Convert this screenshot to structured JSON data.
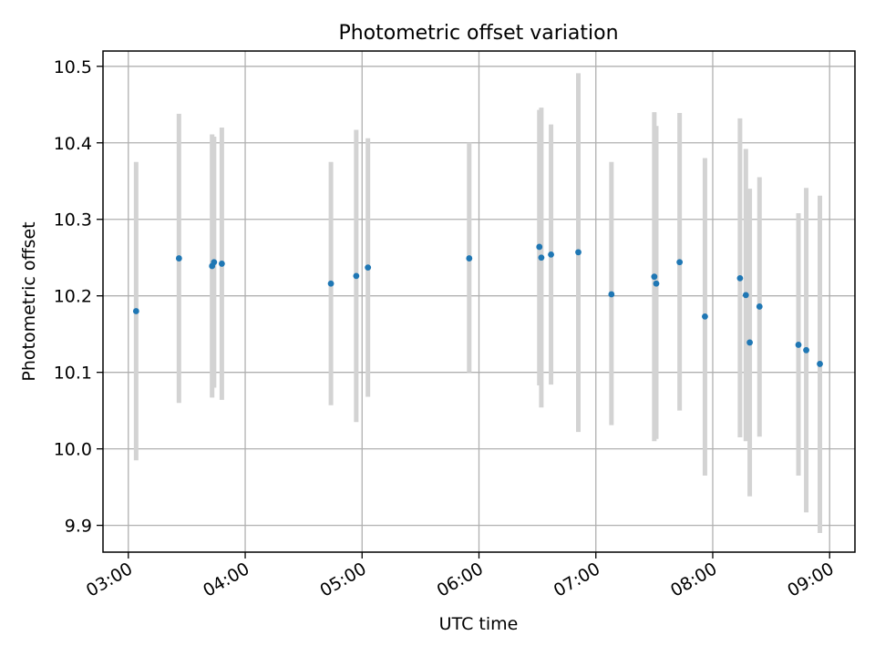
{
  "chart_data": {
    "type": "scatter",
    "title": "Photometric offset variation",
    "xlabel": "UTC time",
    "ylabel": "Photometric offset",
    "xlim": [
      "02:47",
      "09:13"
    ],
    "ylim": [
      9.865,
      10.52
    ],
    "x_ticks": [
      "03:00",
      "04:00",
      "05:00",
      "06:00",
      "07:00",
      "08:00",
      "09:00"
    ],
    "y_ticks": [
      "9.9",
      "10.0",
      "10.1",
      "10.2",
      "10.3",
      "10.4",
      "10.5"
    ],
    "grid": true,
    "colors": {
      "point": "#1f77b4",
      "error_bar": "#d3d3d3",
      "grid": "#b0b0b0"
    },
    "series": [
      {
        "points": [
          {
            "x": "03:04",
            "y": 10.18,
            "ylow": 9.985,
            "yhigh": 10.375
          },
          {
            "x": "03:26",
            "y": 10.249,
            "ylow": 10.06,
            "yhigh": 10.438
          },
          {
            "x": "03:43",
            "y": 10.239,
            "ylow": 10.067,
            "yhigh": 10.411
          },
          {
            "x": "03:44",
            "y": 10.244,
            "ylow": 10.08,
            "yhigh": 10.408
          },
          {
            "x": "03:48",
            "y": 10.242,
            "ylow": 10.064,
            "yhigh": 10.42
          },
          {
            "x": "04:44",
            "y": 10.216,
            "ylow": 10.057,
            "yhigh": 10.375
          },
          {
            "x": "04:57",
            "y": 10.226,
            "ylow": 10.035,
            "yhigh": 10.417
          },
          {
            "x": "05:03",
            "y": 10.237,
            "ylow": 10.068,
            "yhigh": 10.406
          },
          {
            "x": "05:55",
            "y": 10.249,
            "ylow": 10.1,
            "yhigh": 10.4
          },
          {
            "x": "06:31",
            "y": 10.264,
            "ylow": 10.083,
            "yhigh": 10.443
          },
          {
            "x": "06:32",
            "y": 10.25,
            "ylow": 10.054,
            "yhigh": 10.446
          },
          {
            "x": "06:37",
            "y": 10.254,
            "ylow": 10.084,
            "yhigh": 10.424
          },
          {
            "x": "06:51",
            "y": 10.257,
            "ylow": 10.022,
            "yhigh": 10.491
          },
          {
            "x": "07:08",
            "y": 10.202,
            "ylow": 10.031,
            "yhigh": 10.375
          },
          {
            "x": "07:30",
            "y": 10.225,
            "ylow": 10.01,
            "yhigh": 10.44
          },
          {
            "x": "07:31",
            "y": 10.216,
            "ylow": 10.013,
            "yhigh": 10.422
          },
          {
            "x": "07:43",
            "y": 10.244,
            "ylow": 10.05,
            "yhigh": 10.439
          },
          {
            "x": "07:56",
            "y": 10.173,
            "ylow": 9.965,
            "yhigh": 10.38
          },
          {
            "x": "08:14",
            "y": 10.223,
            "ylow": 10.015,
            "yhigh": 10.432
          },
          {
            "x": "08:17",
            "y": 10.201,
            "ylow": 10.01,
            "yhigh": 10.392
          },
          {
            "x": "08:19",
            "y": 10.139,
            "ylow": 9.938,
            "yhigh": 10.34
          },
          {
            "x": "08:24",
            "y": 10.186,
            "ylow": 10.016,
            "yhigh": 10.355
          },
          {
            "x": "08:44",
            "y": 10.136,
            "ylow": 9.965,
            "yhigh": 10.308
          },
          {
            "x": "08:48",
            "y": 10.129,
            "ylow": 9.917,
            "yhigh": 10.341
          },
          {
            "x": "08:55",
            "y": 10.111,
            "ylow": 9.89,
            "yhigh": 10.331
          }
        ]
      }
    ]
  }
}
